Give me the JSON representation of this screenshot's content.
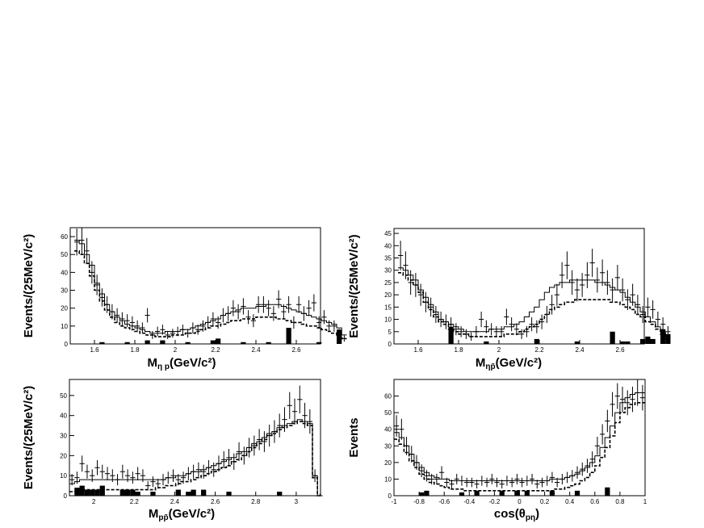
{
  "chart_data": [
    {
      "type": "histogram",
      "xlabel": "M",
      "xlabel_sub": "η p",
      "xlabel_rest": "(GeV/c²)",
      "ylabel": "Events/(25MeV/c²)",
      "xlim": [
        1.48,
        2.72
      ],
      "ylim": [
        0,
        65
      ],
      "xticks": [
        1.6,
        1.8,
        2,
        2.2,
        2.4,
        2.6
      ],
      "xtick_labels": [
        "1.6",
        "1.8",
        "2",
        "2.2",
        "2.4",
        "2.6"
      ],
      "yticks": [
        0,
        10,
        20,
        30,
        40,
        50,
        60
      ],
      "ytick_labels": [
        "0",
        "10",
        "20",
        "30",
        "40",
        "50",
        "60"
      ],
      "bin_start": 1.5,
      "bin_width": 0.025,
      "data_points": [
        57,
        58,
        52,
        40,
        33,
        26,
        22,
        18,
        16,
        14,
        13,
        12,
        10,
        9,
        16,
        5,
        7,
        8,
        5,
        6,
        7,
        8,
        6,
        9,
        8,
        10,
        12,
        14,
        12,
        16,
        17,
        20,
        18,
        21,
        15,
        13,
        22,
        22,
        20,
        17,
        25,
        18,
        22,
        12,
        22,
        17,
        20,
        23,
        12,
        15,
        10,
        10,
        6,
        3
      ],
      "mc_total": [
        58,
        56,
        50,
        44,
        34,
        28,
        22,
        18,
        15,
        13,
        11,
        10,
        9,
        8,
        7,
        6,
        6,
        6,
        7,
        7,
        7,
        8,
        8,
        9,
        10,
        11,
        12,
        13,
        14,
        16,
        17,
        18,
        19,
        20,
        20,
        20,
        21,
        21,
        22,
        22,
        22,
        21,
        20,
        19,
        18,
        17,
        16,
        15,
        14,
        13,
        12,
        11,
        9,
        5
      ],
      "mc_signal": [
        52,
        50,
        45,
        38,
        30,
        24,
        19,
        15,
        12,
        10,
        9,
        8,
        7,
        6,
        5,
        5,
        4,
        4,
        4,
        5,
        5,
        5,
        6,
        6,
        7,
        8,
        9,
        10,
        10,
        11,
        12,
        13,
        13,
        14,
        14,
        14,
        15,
        15,
        15,
        15,
        14,
        14,
        13,
        12,
        12,
        11,
        10,
        10,
        9,
        8,
        7,
        6,
        5,
        3
      ],
      "background": [
        0,
        0,
        0,
        0,
        0,
        1,
        0,
        0,
        0,
        0,
        1,
        0,
        0,
        0,
        2,
        0,
        0,
        2,
        0,
        0,
        0,
        0,
        1,
        0,
        0,
        0,
        0,
        2,
        3,
        0,
        0,
        0,
        0,
        1,
        0,
        0,
        0,
        0,
        1,
        0,
        0,
        0,
        9,
        0,
        0,
        0,
        0,
        0,
        1,
        0,
        0,
        0,
        8,
        0
      ]
    },
    {
      "type": "histogram",
      "xlabel": "M",
      "xlabel_sub": "ηp̄",
      "xlabel_rest": "(GeV/c²)",
      "ylabel": "Events/(25MeV/c²)",
      "xlim": [
        1.48,
        2.72
      ],
      "ylim": [
        0,
        47
      ],
      "xticks": [
        1.6,
        1.8,
        2,
        2.2,
        2.4,
        2.6
      ],
      "xtick_labels": [
        "1.6",
        "1.8",
        "2",
        "2.2",
        "2.4",
        "2.6"
      ],
      "yticks": [
        0,
        5,
        10,
        15,
        20,
        25,
        30,
        35,
        40,
        45
      ],
      "ytick_labels": [
        "0",
        "5",
        "10",
        "15",
        "20",
        "25",
        "30",
        "35",
        "40",
        "45"
      ],
      "bin_start": 1.5,
      "bin_width": 0.025,
      "data_points": [
        36,
        32,
        25,
        24,
        20,
        17,
        15,
        12,
        10,
        9,
        8,
        6,
        5,
        4,
        3,
        5,
        10,
        7,
        6,
        5,
        5,
        11,
        8,
        6,
        4,
        5,
        8,
        7,
        9,
        12,
        16,
        20,
        28,
        32,
        25,
        22,
        24,
        28,
        33,
        26,
        29,
        25,
        22,
        27,
        22,
        18,
        20,
        16,
        12,
        15,
        14,
        10,
        8,
        5
      ],
      "mc_total": [
        31,
        30,
        28,
        26,
        22,
        19,
        16,
        13,
        10,
        9,
        8,
        7,
        6,
        5,
        5,
        5,
        5,
        5,
        6,
        6,
        6,
        7,
        7,
        8,
        9,
        11,
        13,
        15,
        18,
        21,
        23,
        24,
        25,
        25,
        26,
        26,
        26,
        26,
        26,
        25,
        25,
        24,
        23,
        22,
        21,
        19,
        17,
        15,
        13,
        11,
        9,
        7,
        5,
        3
      ],
      "mc_signal": [
        29,
        28,
        26,
        24,
        21,
        17,
        14,
        11,
        9,
        8,
        6,
        5,
        4,
        4,
        3,
        3,
        3,
        3,
        3,
        3,
        3,
        4,
        4,
        4,
        5,
        6,
        7,
        8,
        10,
        12,
        14,
        15,
        16,
        17,
        17,
        18,
        18,
        18,
        18,
        18,
        18,
        18,
        17,
        17,
        16,
        15,
        14,
        12,
        11,
        9,
        8,
        6,
        4,
        2
      ],
      "background": [
        0,
        0,
        0,
        0,
        0,
        0,
        0,
        0,
        0,
        0,
        7,
        0,
        0,
        0,
        0,
        0,
        0,
        1,
        0,
        0,
        0,
        0,
        0,
        0,
        0,
        0,
        0,
        2,
        0,
        0,
        0,
        0,
        0,
        0,
        0,
        1,
        0,
        0,
        0,
        0,
        0,
        0,
        5,
        0,
        1,
        1,
        0,
        0,
        2,
        3,
        2,
        0,
        6,
        4
      ]
    },
    {
      "type": "histogram",
      "xlabel": "M",
      "xlabel_sub": "pp̄",
      "xlabel_rest": "(GeV/c²)",
      "ylabel": "Events/(25MeV/c²)",
      "xlim": [
        1.88,
        3.12
      ],
      "ylim": [
        0,
        58
      ],
      "xticks": [
        2,
        2.2,
        2.4,
        2.6,
        2.8,
        3
      ],
      "xtick_labels": [
        "2",
        "2.2",
        "2.4",
        "2.6",
        "2.8",
        "3"
      ],
      "yticks": [
        0,
        10,
        20,
        30,
        40,
        50
      ],
      "ytick_labels": [
        "0",
        "10",
        "20",
        "30",
        "40",
        "50"
      ],
      "bin_start": 1.88,
      "bin_width": 0.025,
      "data_points": [
        8,
        9,
        16,
        12,
        10,
        14,
        12,
        11,
        10,
        8,
        12,
        10,
        9,
        11,
        10,
        5,
        7,
        6,
        8,
        9,
        10,
        8,
        9,
        11,
        12,
        13,
        12,
        14,
        13,
        16,
        18,
        19,
        17,
        22,
        20,
        24,
        25,
        28,
        27,
        30,
        32,
        35,
        38,
        45,
        42,
        48,
        40,
        37,
        10,
        0
      ],
      "mc_total": [
        6,
        7,
        8,
        8,
        8,
        8,
        8,
        8,
        8,
        8,
        8,
        8,
        8,
        8,
        8,
        8,
        8,
        8,
        8,
        9,
        9,
        10,
        10,
        11,
        12,
        12,
        13,
        14,
        15,
        16,
        17,
        18,
        19,
        21,
        22,
        24,
        26,
        27,
        29,
        31,
        32,
        34,
        35,
        36,
        37,
        38,
        37,
        36,
        10,
        0
      ],
      "mc_signal": [
        2,
        2,
        3,
        3,
        3,
        3,
        3,
        3,
        3,
        3,
        3,
        3,
        3,
        3,
        3,
        3,
        3,
        4,
        4,
        5,
        5,
        6,
        7,
        7,
        8,
        9,
        10,
        11,
        12,
        13,
        14,
        15,
        17,
        18,
        20,
        22,
        24,
        26,
        28,
        30,
        31,
        33,
        34,
        35,
        36,
        37,
        36,
        35,
        9,
        0
      ],
      "background": [
        0,
        4,
        5,
        3,
        3,
        3,
        5,
        0,
        0,
        0,
        3,
        3,
        3,
        2,
        0,
        0,
        2,
        0,
        0,
        0,
        0,
        3,
        0,
        2,
        3,
        0,
        3,
        0,
        0,
        0,
        0,
        2,
        0,
        0,
        0,
        0,
        0,
        0,
        0,
        0,
        0,
        2,
        0,
        0,
        0,
        0,
        0,
        0,
        0,
        0
      ]
    },
    {
      "type": "histogram",
      "xlabel": "cos(θ",
      "xlabel_sub": "pη",
      "xlabel_rest": ")",
      "ylabel": "Events",
      "xlim": [
        -1,
        1
      ],
      "ylim": [
        0,
        70
      ],
      "xticks": [
        -1,
        -0.8,
        -0.6,
        -0.4,
        -0.2,
        0,
        0.2,
        0.4,
        0.6,
        0.8,
        1
      ],
      "xtick_labels": [
        "-1",
        "-0.8",
        "-0.6",
        "-0.4",
        "-0.2",
        "0",
        "0.2",
        "0.4",
        "0.6",
        "0.8",
        "1"
      ],
      "yticks": [
        0,
        10,
        20,
        30,
        40,
        50,
        60
      ],
      "ytick_labels": [
        "0",
        "10",
        "20",
        "30",
        "40",
        "50",
        "60"
      ],
      "bin_start": -1,
      "bin_width": 0.04,
      "data_points": [
        42,
        40,
        30,
        25,
        20,
        15,
        12,
        10,
        10,
        14,
        8,
        7,
        10,
        9,
        8,
        8,
        7,
        9,
        8,
        10,
        8,
        7,
        9,
        8,
        10,
        8,
        9,
        10,
        7,
        8,
        9,
        11,
        8,
        10,
        11,
        12,
        14,
        16,
        18,
        22,
        30,
        37,
        45,
        55,
        60,
        58,
        56,
        58,
        62,
        59
      ],
      "mc_total": [
        38,
        35,
        30,
        25,
        20,
        17,
        14,
        12,
        11,
        10,
        10,
        9,
        9,
        9,
        9,
        9,
        9,
        9,
        9,
        9,
        9,
        9,
        9,
        9,
        9,
        9,
        9,
        9,
        9,
        9,
        9,
        10,
        10,
        10,
        11,
        12,
        13,
        15,
        17,
        20,
        24,
        29,
        35,
        42,
        50,
        56,
        59,
        61,
        62,
        62
      ],
      "mc_signal": [
        34,
        31,
        26,
        21,
        17,
        13,
        10,
        8,
        7,
        6,
        5,
        4,
        4,
        4,
        3,
        3,
        3,
        3,
        3,
        3,
        3,
        3,
        3,
        3,
        3,
        3,
        3,
        3,
        3,
        3,
        3,
        3,
        4,
        4,
        5,
        6,
        7,
        9,
        11,
        14,
        18,
        23,
        29,
        36,
        44,
        50,
        53,
        55,
        56,
        56
      ],
      "background": [
        0,
        0,
        0,
        0,
        0,
        2,
        3,
        0,
        0,
        0,
        0,
        0,
        0,
        2,
        0,
        0,
        3,
        0,
        0,
        0,
        0,
        3,
        0,
        0,
        3,
        0,
        3,
        0,
        0,
        0,
        0,
        3,
        0,
        0,
        0,
        0,
        3,
        0,
        0,
        0,
        0,
        0,
        5,
        0,
        0,
        0,
        0,
        0,
        0,
        0
      ]
    }
  ]
}
